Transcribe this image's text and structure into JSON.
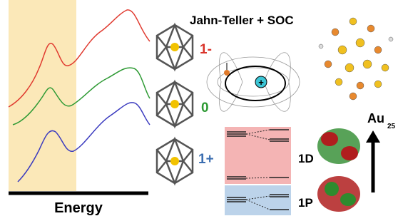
{
  "title": "Jahn-Teller + SOC",
  "axis_label": "Energy",
  "charges": [
    "1-",
    "0",
    "1+"
  ],
  "center_symbol": "+",
  "cluster_label": {
    "element": "Au",
    "subscript": "25"
  },
  "levels": [
    "1D",
    "1P"
  ]
}
